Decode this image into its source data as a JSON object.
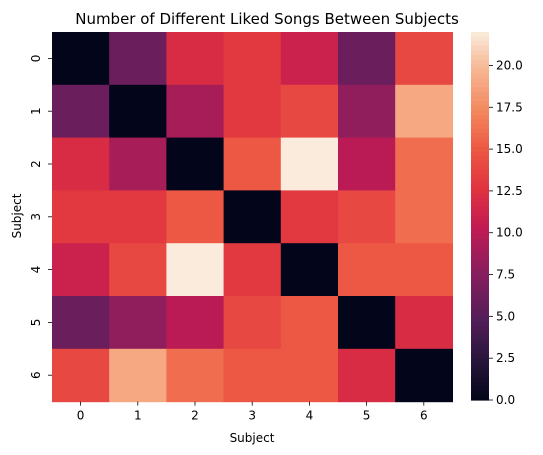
{
  "chart_data": {
    "type": "heatmap",
    "title": "Number of Different Liked Songs Between Subjects",
    "xlabel": "Subject",
    "ylabel": "Subject",
    "x_categories": [
      "0",
      "1",
      "2",
      "3",
      "4",
      "5",
      "6"
    ],
    "y_categories": [
      "0",
      "1",
      "2",
      "3",
      "4",
      "5",
      "6"
    ],
    "values": [
      [
        0,
        6,
        12,
        13,
        11,
        6,
        14
      ],
      [
        6,
        0,
        9,
        13,
        14,
        8,
        19
      ],
      [
        12,
        9,
        0,
        15,
        22,
        10,
        16
      ],
      [
        13,
        13,
        15,
        0,
        13,
        14,
        16
      ],
      [
        11,
        14,
        22,
        13,
        0,
        15,
        15
      ],
      [
        6,
        8,
        10,
        14,
        15,
        0,
        12
      ],
      [
        14,
        19,
        16,
        15,
        15,
        12,
        0
      ]
    ],
    "colorbar": {
      "min": 0,
      "max": 22,
      "ticks": [
        "0.0",
        "2.5",
        "5.0",
        "7.5",
        "10.0",
        "12.5",
        "15.0",
        "17.5",
        "20.0"
      ],
      "colormap": "rocket"
    },
    "grid": false,
    "legend": "none"
  }
}
